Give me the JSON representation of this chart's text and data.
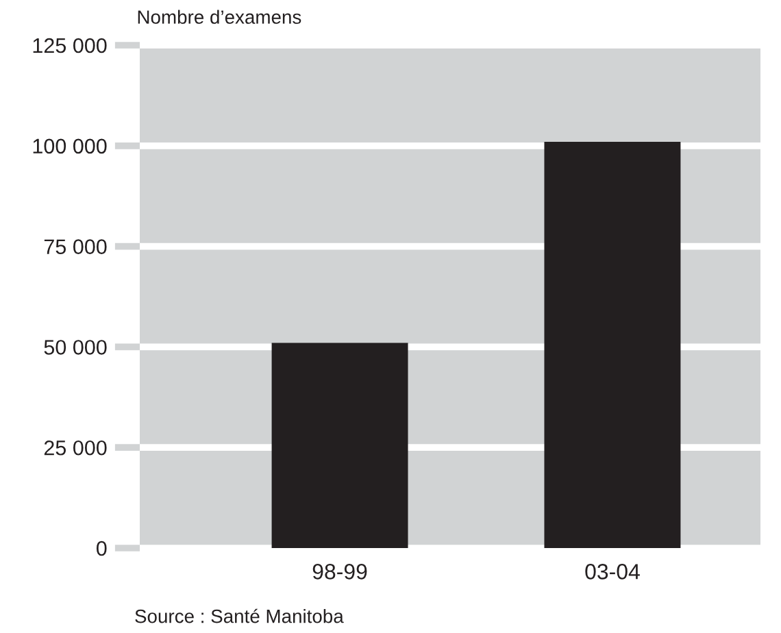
{
  "chart_data": {
    "type": "bar",
    "ylabel": "Nombre d’examens",
    "categories": [
      "98-99",
      "03-04"
    ],
    "values": [
      51000,
      101000
    ],
    "color": "#231f20",
    "ylim": [
      0,
      125000
    ],
    "yticks": [
      {
        "value": 0,
        "label": "0"
      },
      {
        "value": 25000,
        "label": "25 000"
      },
      {
        "value": 50000,
        "label": "50 000"
      },
      {
        "value": 75000,
        "label": "75 000"
      },
      {
        "value": 100000,
        "label": "100 000"
      },
      {
        "value": 125000,
        "label": "125 000"
      }
    ],
    "grid": "y",
    "legend": false,
    "annotations": [
      "Source : Santé Manitoba"
    ]
  }
}
